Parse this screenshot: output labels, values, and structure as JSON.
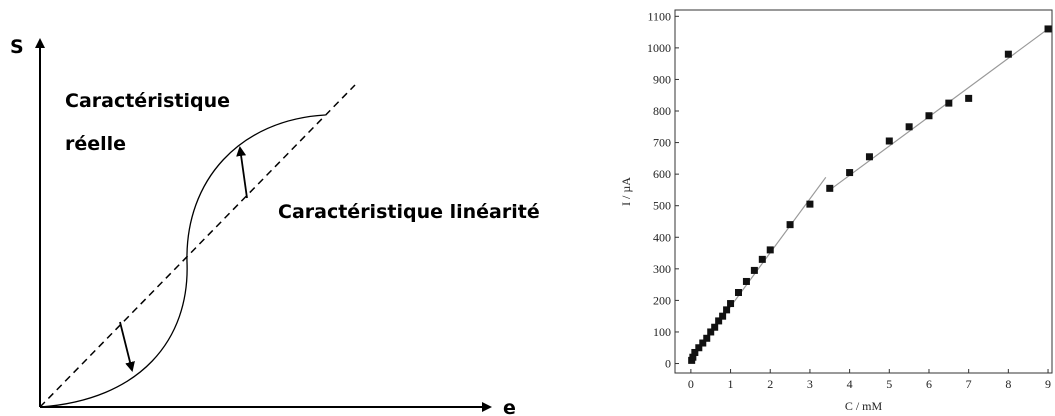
{
  "diagram": {
    "y_axis_label": "S",
    "x_axis_label": "e",
    "real_label": [
      "Caractéristique",
      "réelle"
    ],
    "linear_label": "Caractéristique linéarité"
  },
  "chart_data": {
    "type": "scatter",
    "xlabel": "C / mM",
    "ylabel": "I / µA",
    "x": [
      0.02,
      0.05,
      0.1,
      0.2,
      0.3,
      0.4,
      0.5,
      0.6,
      0.7,
      0.8,
      0.9,
      1.0,
      1.2,
      1.4,
      1.6,
      1.8,
      2.0,
      2.5,
      3.0,
      3.5,
      4.0,
      4.5,
      5.0,
      5.5,
      6.0,
      6.5,
      7.0,
      8.0,
      9.0
    ],
    "values": [
      10,
      20,
      35,
      50,
      65,
      80,
      100,
      115,
      135,
      150,
      170,
      190,
      225,
      260,
      295,
      330,
      360,
      440,
      505,
      555,
      605,
      655,
      705,
      750,
      785,
      825,
      840,
      980,
      1060
    ],
    "color": "#111111",
    "fit_lines": [
      {
        "x": [
          0,
          3.4
        ],
        "values": [
          10,
          590
        ]
      },
      {
        "x": [
          3.5,
          9.0
        ],
        "values": [
          550,
          1060
        ]
      }
    ],
    "fit_color": "#999999",
    "xlim": [
      -0.4,
      9.1
    ],
    "xticks": [
      0,
      1,
      2,
      3,
      4,
      5,
      6,
      7,
      8,
      9
    ],
    "ylim": [
      -30,
      1120
    ],
    "yticks": [
      0,
      100,
      200,
      300,
      400,
      500,
      600,
      700,
      800,
      900,
      1000,
      1100
    ]
  }
}
